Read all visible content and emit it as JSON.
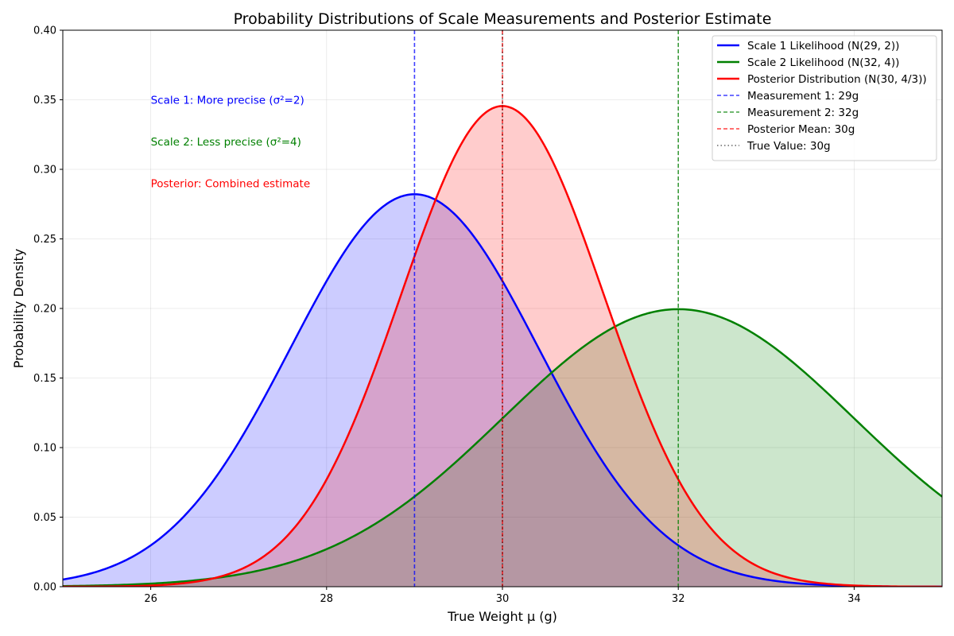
{
  "chart_data": {
    "type": "line",
    "title": "Probability Distributions of Scale Measurements and Posterior Estimate",
    "xlabel": "True Weight μ (g)",
    "ylabel": "Probability Density",
    "xlim": [
      25,
      35
    ],
    "ylim": [
      0,
      0.4
    ],
    "xticks": [
      26,
      28,
      30,
      32,
      34
    ],
    "xtick_labels": [
      "26",
      "28",
      "30",
      "32",
      "34"
    ],
    "yticks": [
      0,
      0.05,
      0.1,
      0.15,
      0.2,
      0.25,
      0.3,
      0.35,
      0.4
    ],
    "ytick_labels": [
      "0.00",
      "0.05",
      "0.10",
      "0.15",
      "0.20",
      "0.25",
      "0.30",
      "0.35",
      "0.40"
    ],
    "grid": true,
    "legend_position": "top-right",
    "series": [
      {
        "name": "Scale 1 Likelihood (N(29, 2))",
        "distribution": "normal",
        "mean": 29,
        "variance": 2,
        "color": "#0000ff",
        "fill": "#0000ff",
        "fill_opacity": 0.2
      },
      {
        "name": "Scale 2 Likelihood (N(32, 4))",
        "distribution": "normal",
        "mean": 32,
        "variance": 4,
        "color": "#008000",
        "fill": "#008000",
        "fill_opacity": 0.2
      },
      {
        "name": "Posterior Distribution (N(30, 4/3))",
        "distribution": "normal",
        "mean": 30,
        "variance": 1.3333333,
        "color": "#ff0000",
        "fill": "#ff0000",
        "fill_opacity": 0.2
      }
    ],
    "vlines": [
      {
        "name": "Measurement 1: 29g",
        "x": 29,
        "color": "#0000ff",
        "style": "dashed"
      },
      {
        "name": "Measurement 2: 32g",
        "x": 32,
        "color": "#008000",
        "style": "dashed"
      },
      {
        "name": "Posterior Mean: 30g",
        "x": 30,
        "color": "#ff0000",
        "style": "dashed"
      },
      {
        "name": "True Value: 30g",
        "x": 30,
        "color": "#000000",
        "style": "dotted"
      }
    ],
    "annotations": [
      {
        "text": "Scale 1: More precise (σ²=2)",
        "x": 26,
        "y": 0.35,
        "color": "#0000ff"
      },
      {
        "text": "Scale 2: Less precise (σ²=4)",
        "x": 26,
        "y": 0.32,
        "color": "#008000"
      },
      {
        "text": "Posterior: Combined estimate",
        "x": 26,
        "y": 0.29,
        "color": "#ff0000"
      }
    ]
  }
}
